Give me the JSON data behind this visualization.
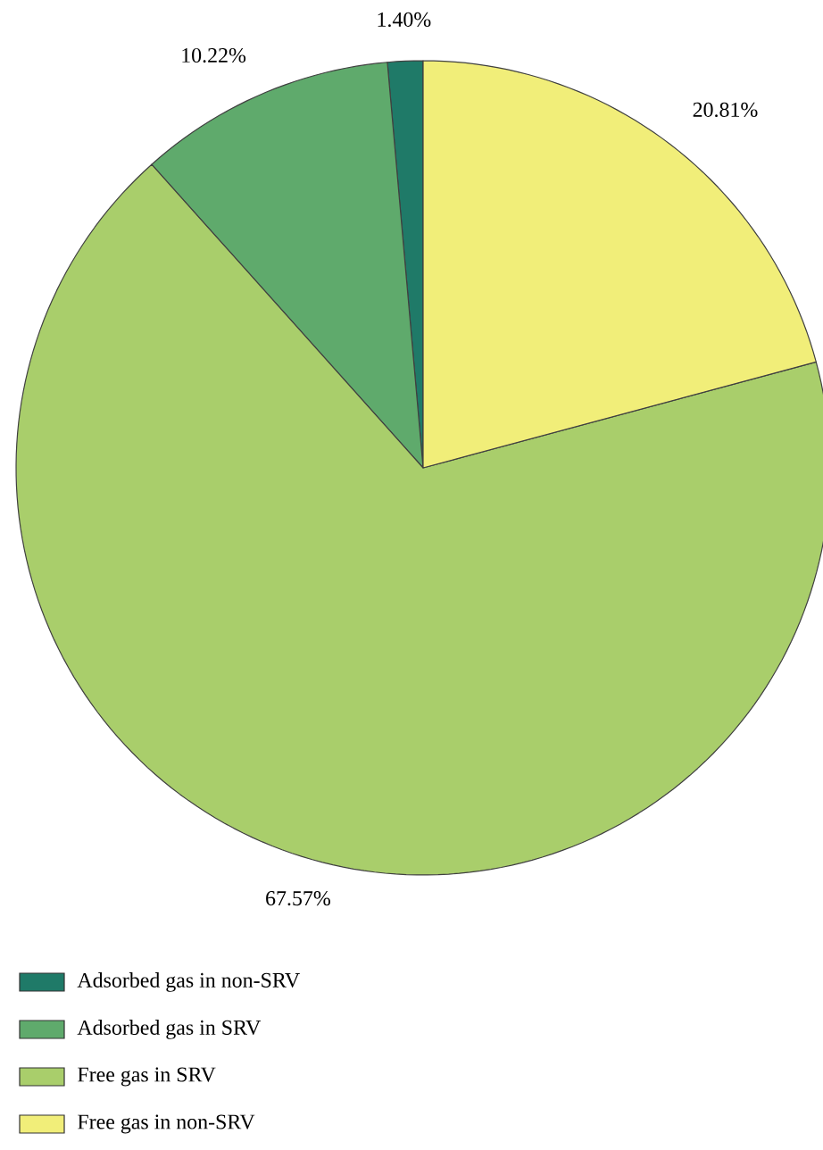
{
  "chart_data": {
    "type": "pie",
    "categories": [
      "Adsorbed gas in non-SRV",
      "Adsorbed gas in SRV",
      "Free gas in SRV",
      "Free gas in non-SRV"
    ],
    "values": [
      1.4,
      10.22,
      67.57,
      20.81
    ],
    "colors": [
      "#1f7a68",
      "#5faa6c",
      "#a9ce6b",
      "#f1ee79"
    ],
    "value_labels": [
      "1.40%",
      "10.22%",
      "67.57%",
      "20.81%"
    ],
    "legend": "bottom left"
  }
}
